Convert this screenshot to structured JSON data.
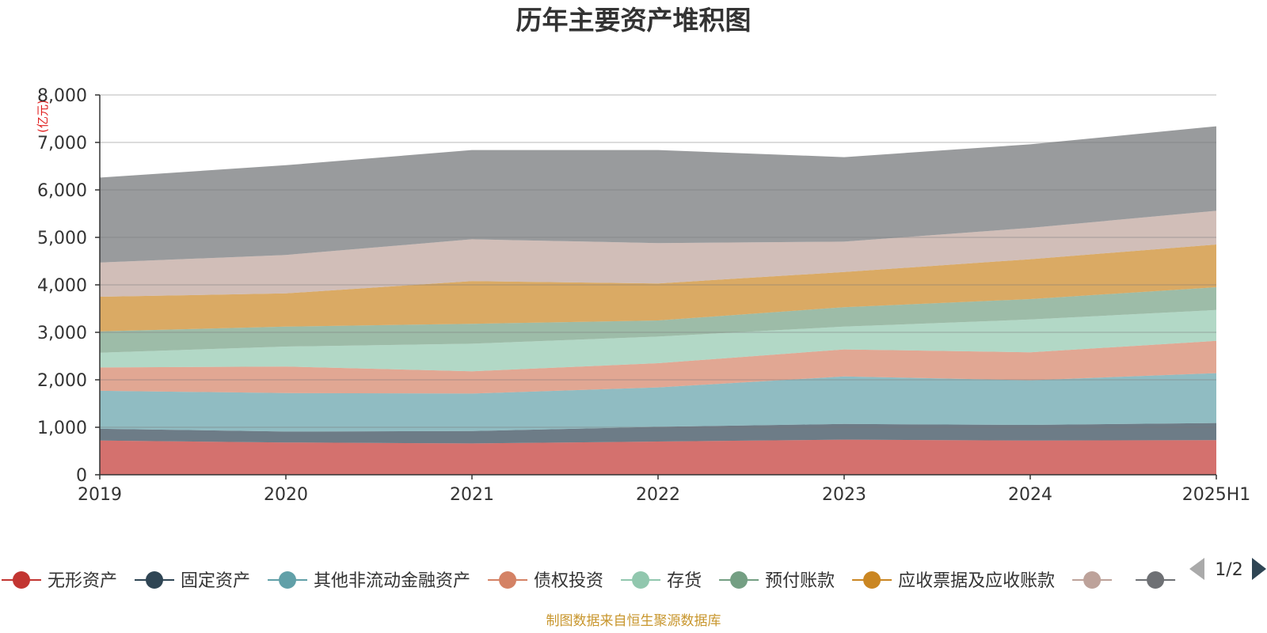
{
  "chart_data": {
    "type": "area",
    "stacked": true,
    "title": "历年主要资产堆积图",
    "unit": "(亿元)",
    "categories": [
      "2019",
      "2020",
      "2021",
      "2022",
      "2023",
      "2024",
      "2025H1"
    ],
    "ylim": [
      0,
      8000
    ],
    "yticks": [
      "0",
      "1,000",
      "2,000",
      "3,000",
      "4,000",
      "5,000",
      "6,000",
      "7,000",
      "8,000"
    ],
    "grid": true,
    "legend_position": "bottom",
    "series": [
      {
        "name": "无形资产",
        "color": "#c23531",
        "values": [
          720,
          680,
          660,
          700,
          740,
          720,
          730
        ]
      },
      {
        "name": "固定资产",
        "color": "#2f4554",
        "values": [
          250,
          230,
          260,
          310,
          330,
          330,
          360
        ]
      },
      {
        "name": "其他非流动金融资产",
        "color": "#61a0a8",
        "values": [
          800,
          810,
          790,
          830,
          1000,
          940,
          1050
        ]
      },
      {
        "name": "债权投资",
        "color": "#d48265",
        "values": [
          490,
          560,
          470,
          510,
          570,
          590,
          680
        ]
      },
      {
        "name": "存货",
        "color": "#91c7ae",
        "values": [
          310,
          420,
          580,
          560,
          480,
          690,
          650
        ]
      },
      {
        "name": "预付账款",
        "color": "#749f83",
        "values": [
          450,
          420,
          420,
          340,
          410,
          430,
          480
        ]
      },
      {
        "name": "应收票据及应收账款",
        "color": "#ca8622",
        "values": [
          730,
          700,
          900,
          780,
          740,
          840,
          900
        ]
      },
      {
        "name": "",
        "color": "#bda29a",
        "values": [
          720,
          810,
          880,
          850,
          640,
          660,
          710
        ]
      },
      {
        "name": "",
        "color": "#6e7074",
        "values": [
          1790,
          1890,
          1880,
          1960,
          1780,
          1760,
          1780
        ]
      }
    ]
  },
  "legend": {
    "page_indicator": "1/2",
    "prev_icon": "triangle-left-icon",
    "next_icon": "triangle-right-icon"
  },
  "footer": {
    "source": "制图数据来自恒生聚源数据库"
  }
}
